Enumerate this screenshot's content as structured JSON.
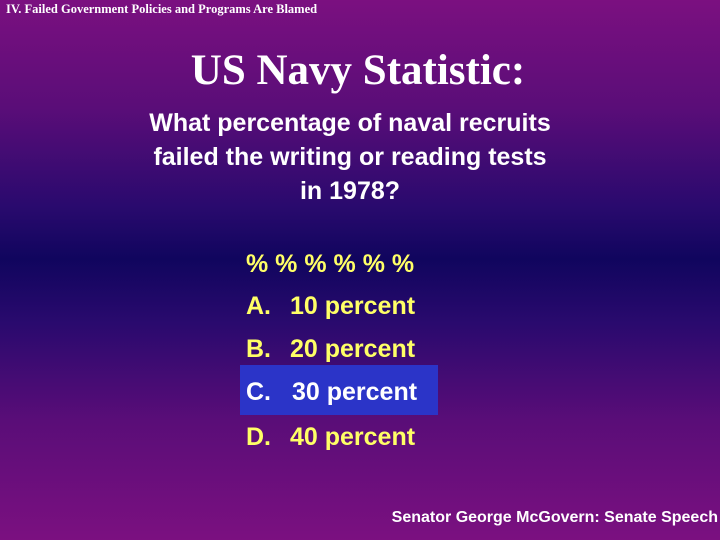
{
  "header": {
    "section": "IV.  Failed Government Policies and  Programs Are Blamed"
  },
  "slide": {
    "title": "US Navy Statistic:",
    "question_lines": [
      "What percentage of naval recruits",
      "failed the writing or reading tests",
      "in 1978?"
    ],
    "percent_symbols": "% % % % % %",
    "choices": [
      {
        "letter": "A.",
        "text": "10 percent",
        "highlighted": false
      },
      {
        "letter": "B.",
        "text": "20 percent",
        "highlighted": false
      },
      {
        "letter": "C.",
        "text": "30 percent",
        "highlighted": true
      },
      {
        "letter": "D.",
        "text": "40 percent",
        "highlighted": false
      }
    ]
  },
  "footer": {
    "attribution": "Senator George McGovern: Senate Speech"
  },
  "colors": {
    "background_top": "#7b1080",
    "background_middle": "#10055e",
    "answer_text": "#ffff66",
    "highlight_box": "#2b34c8",
    "primary_text": "#ffffff"
  }
}
